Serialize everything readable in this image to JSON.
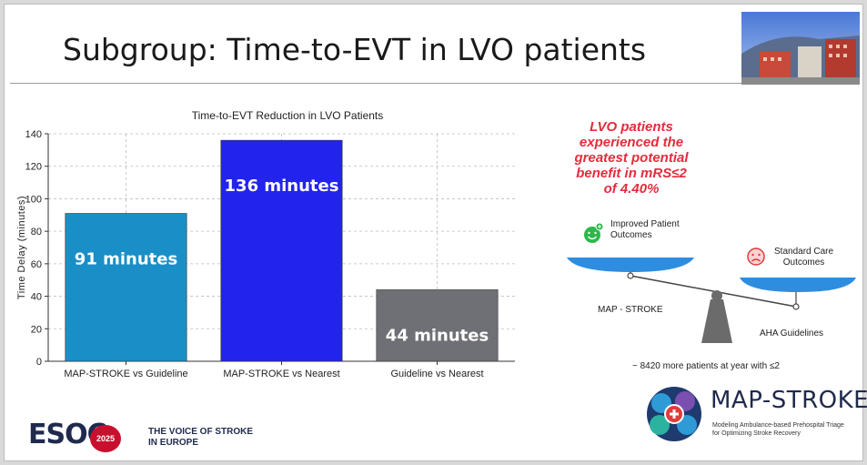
{
  "slide": {
    "title": "Subgroup: Time-to-EVT in LVO patients"
  },
  "chart_data": {
    "type": "bar",
    "title": "Time-to-EVT Reduction in LVO Patients",
    "xlabel": "",
    "ylabel": "Time Delay (minutes)",
    "ylim": [
      0,
      140
    ],
    "yticks": [
      0,
      20,
      40,
      60,
      80,
      100,
      120,
      140
    ],
    "grid": true,
    "categories": [
      "MAP-STROKE vs Guideline",
      "MAP-STROKE vs Nearest",
      "Guideline vs Nearest"
    ],
    "values": [
      91,
      136,
      44
    ],
    "data_labels": [
      "91 minutes",
      "136 minutes",
      "44 minutes"
    ],
    "colors": [
      "#1a8fc7",
      "#2323ee",
      "#6f6f76"
    ]
  },
  "callout": {
    "line1": "LVO patients",
    "line2": "experienced the",
    "line3": "greatest potential",
    "line4": "benefit in mRS≤2",
    "line5_prefix": "of ",
    "line5_value": "4.40%",
    "color": "#e52b3c"
  },
  "scale": {
    "left_line1": "Improved Patient",
    "left_line2": "Outcomes",
    "right_line1": "Standard Care",
    "right_line2": "Outcomes",
    "left_pan": "MAP - STROKE",
    "right_pan": "AHA Guidelines",
    "pan_color": "#2f8de0"
  },
  "footnote": "~ 8420 more patients at year with ≤2",
  "esoc": {
    "logo": "ESOC",
    "year": "2025",
    "tagline1": "THE VOICE OF STROKE",
    "tagline2": "IN EUROPE"
  },
  "brand": {
    "name": "MAP-STROKE",
    "sub1": "Modeling Ambulance-based Prehospital Triage",
    "sub2": "for Optimizing Stroke Recovery"
  },
  "icons": {
    "photo": "building-photo",
    "happy": "happy-face-icon",
    "sad": "sad-face-icon",
    "brand": "brain-logo-icon"
  }
}
